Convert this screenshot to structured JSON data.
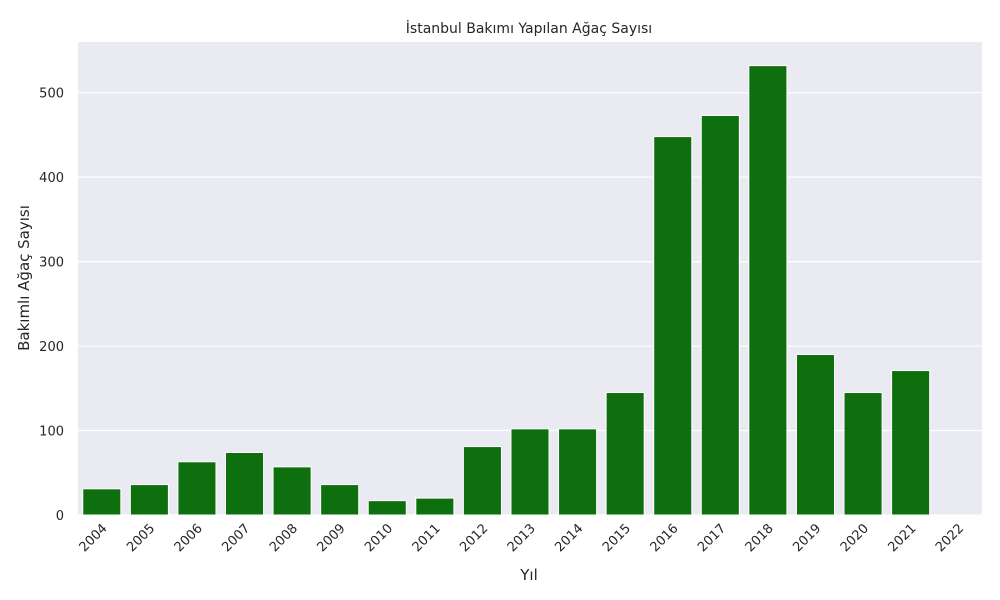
{
  "chart_data": {
    "type": "bar",
    "title": "İstanbul Bakımı Yapılan Ağaç Sayısı",
    "xlabel": "Yıl",
    "ylabel": "Bakımlı Ağaç Sayısı",
    "categories": [
      "2004",
      "2005",
      "2006",
      "2007",
      "2008",
      "2009",
      "2010",
      "2011",
      "2012",
      "2013",
      "2014",
      "2015",
      "2016",
      "2017",
      "2018",
      "2019",
      "2020",
      "2021",
      "2022"
    ],
    "values": [
      31,
      36,
      63,
      74,
      57,
      36,
      17,
      20,
      81,
      102,
      102,
      145,
      448,
      473,
      532,
      190,
      145,
      171,
      0
    ],
    "ylim": [
      0,
      560
    ],
    "yticks": [
      0,
      100,
      200,
      300,
      400,
      500
    ],
    "bar_color": "#0e6f0e",
    "background_color": "#eaeaf2",
    "grid": true,
    "legend": "none"
  }
}
